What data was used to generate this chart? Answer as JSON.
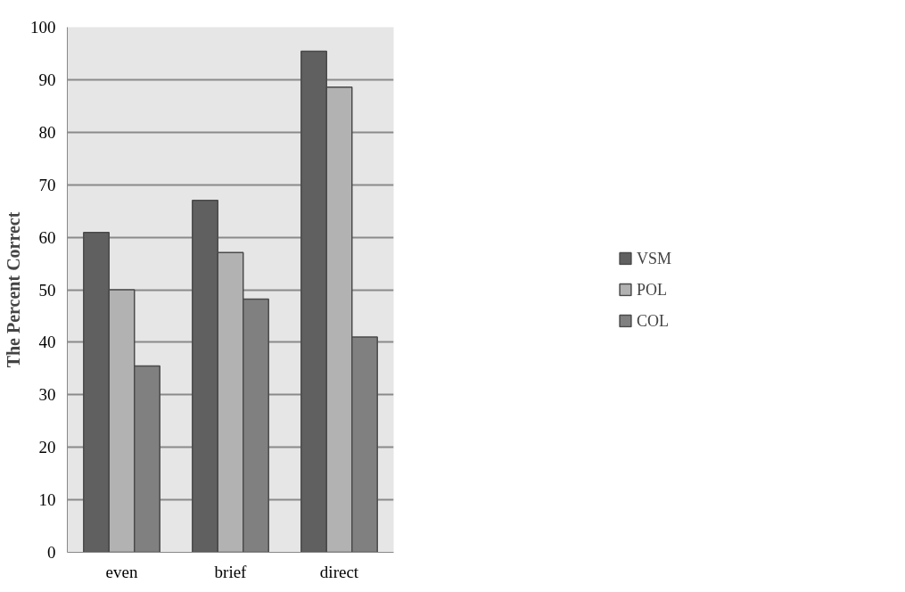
{
  "chart_data": {
    "type": "bar",
    "ylabel": "The Percent Correct",
    "categories": [
      "even",
      "brief",
      "direct"
    ],
    "series": [
      {
        "name": "VSM",
        "color": "#606060",
        "values": [
          60.9,
          67,
          95.4
        ]
      },
      {
        "name": "POL",
        "color": "#b2b2b2",
        "values": [
          50,
          57.1,
          88.6
        ]
      },
      {
        "name": "COL",
        "color": "#808080",
        "values": [
          35.5,
          48.2,
          41
        ]
      }
    ],
    "ylim": [
      0,
      100
    ],
    "yticks": [
      0,
      10,
      20,
      30,
      40,
      50,
      60,
      70,
      80,
      90,
      100
    ],
    "grid": "y",
    "legend": "right"
  }
}
